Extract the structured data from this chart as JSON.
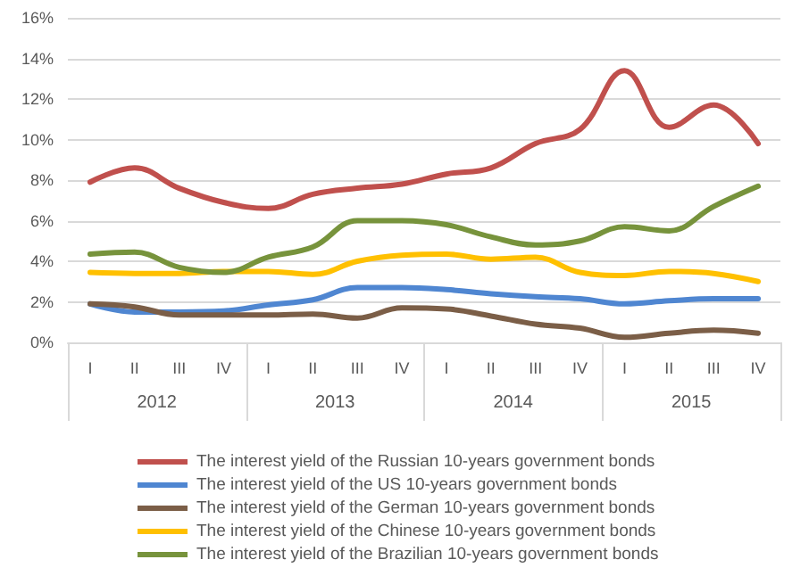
{
  "chart_data": {
    "type": "line",
    "categories": [
      "I",
      "II",
      "III",
      "IV",
      "I",
      "II",
      "III",
      "IV",
      "I",
      "II",
      "III",
      "IV",
      "I",
      "II",
      "III",
      "IV"
    ],
    "annotations": [
      "2012",
      "2013",
      "2014",
      "2015"
    ],
    "series": [
      {
        "name": "The interest yield of the Russian 10-years government bonds",
        "color": "#c0504d",
        "values": [
          7.9,
          8.6,
          7.6,
          6.9,
          6.6,
          7.3,
          7.6,
          7.8,
          8.3,
          8.6,
          9.8,
          10.5,
          13.4,
          10.6,
          11.7,
          9.8
        ]
      },
      {
        "name": "The interest yield of the US 10-years government bonds",
        "color": "#4f86d1",
        "values": [
          1.9,
          1.5,
          1.5,
          1.55,
          1.85,
          2.1,
          2.7,
          2.7,
          2.6,
          2.4,
          2.25,
          2.15,
          1.9,
          2.05,
          2.15,
          2.15
        ]
      },
      {
        "name": "The interest yield of the German 10-years government bonds",
        "color": "#7b5e47",
        "values": [
          1.9,
          1.75,
          1.35,
          1.35,
          1.35,
          1.4,
          1.2,
          1.7,
          1.65,
          1.3,
          0.9,
          0.7,
          0.25,
          0.45,
          0.6,
          0.45
        ]
      },
      {
        "name": "The interest yield of the Chinese 10-years government bonds",
        "color": "#ffc000",
        "values": [
          3.45,
          3.4,
          3.4,
          3.5,
          3.5,
          3.35,
          4.0,
          4.3,
          4.35,
          4.1,
          4.2,
          3.45,
          3.3,
          3.5,
          3.4,
          3.0
        ]
      },
      {
        "name": "The interest yield of the Brazilian 10-years government bonds",
        "color": "#77933c",
        "values": [
          4.35,
          4.45,
          3.7,
          3.45,
          4.2,
          4.7,
          6.0,
          6.0,
          5.8,
          5.2,
          4.8,
          5.0,
          5.7,
          5.5,
          6.7,
          7.7
        ]
      }
    ],
    "ylim": [
      0,
      16
    ],
    "yticks": [
      {
        "value": 0,
        "label": "0%"
      },
      {
        "value": 2,
        "label": "2%"
      },
      {
        "value": 4,
        "label": "4%"
      },
      {
        "value": 6,
        "label": "6%"
      },
      {
        "value": 8,
        "label": "8%"
      },
      {
        "value": 10,
        "label": "10%"
      },
      {
        "value": 12,
        "label": "12%"
      },
      {
        "value": 14,
        "label": "14%"
      },
      {
        "value": 16,
        "label": "16%"
      }
    ],
    "grid": "y",
    "legend": "bottom",
    "marker": "none",
    "line_style": "solid"
  }
}
